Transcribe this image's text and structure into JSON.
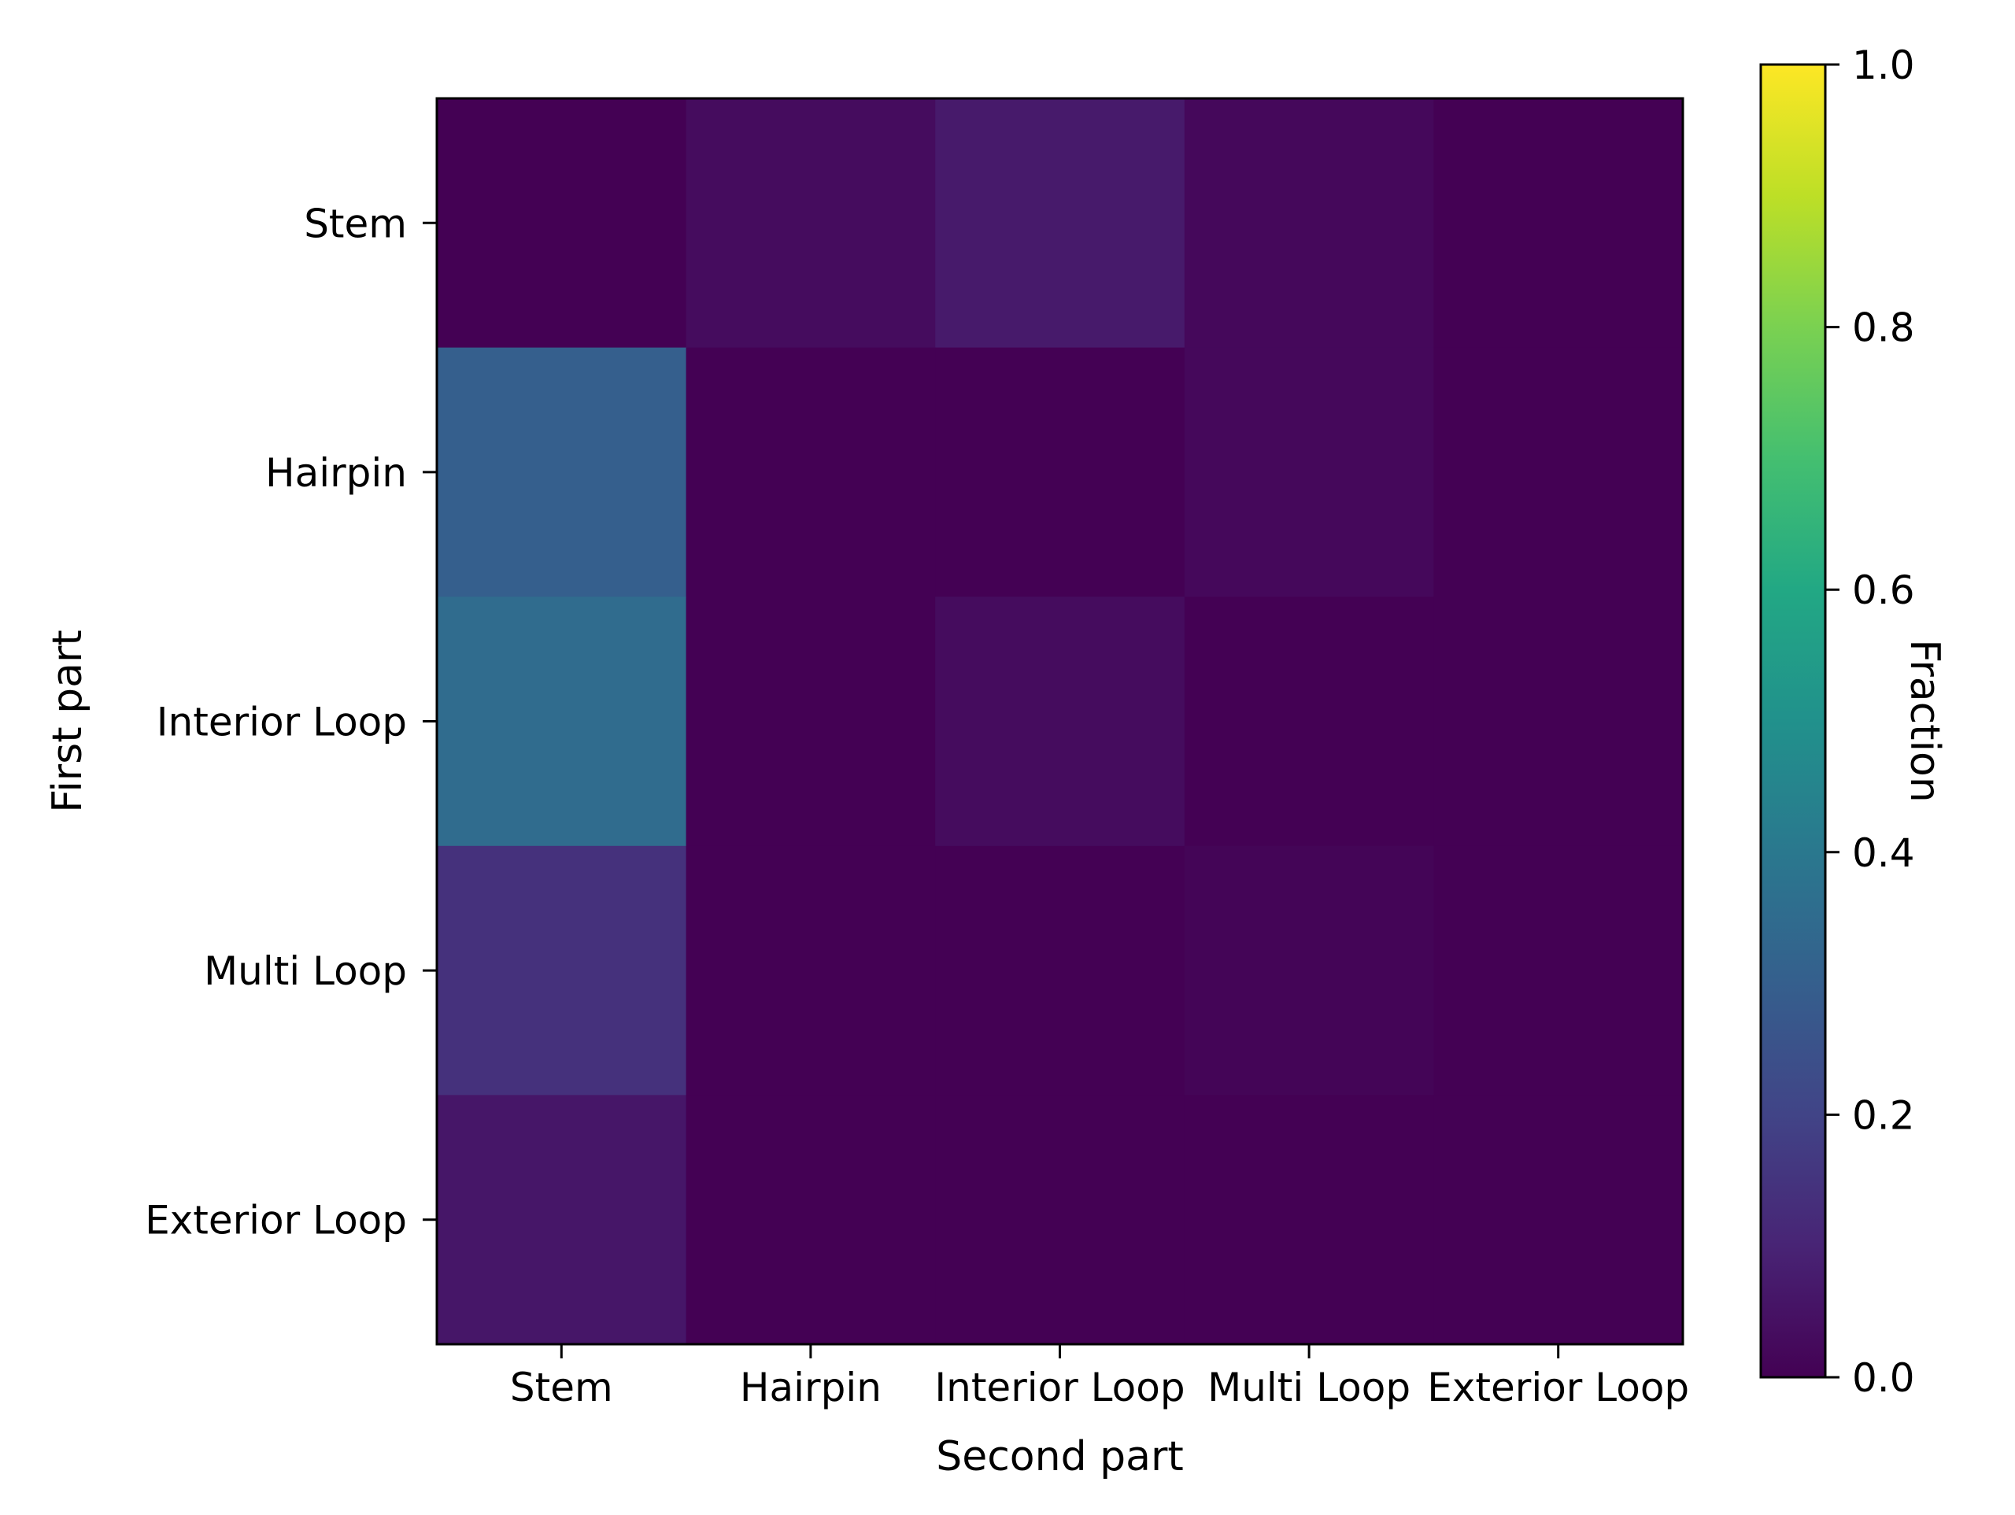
{
  "chart_data": {
    "type": "heatmap",
    "title": "",
    "xlabel": "Second part",
    "ylabel": "First part",
    "x_categories": [
      "Stem",
      "Hairpin",
      "Interior Loop",
      "Multi Loop",
      "Exterior Loop"
    ],
    "y_categories": [
      "Stem",
      "Hairpin",
      "Interior Loop",
      "Multi Loop",
      "Exterior Loop"
    ],
    "values": [
      [
        0.0,
        0.03,
        0.07,
        0.02,
        0.0
      ],
      [
        0.3,
        0.0,
        0.0,
        0.02,
        0.0
      ],
      [
        0.35,
        0.0,
        0.03,
        0.0,
        0.0
      ],
      [
        0.14,
        0.0,
        0.0,
        0.01,
        0.0
      ],
      [
        0.06,
        0.0,
        0.0,
        0.0,
        0.0
      ]
    ],
    "colormap": "viridis",
    "colorbar": {
      "label": "Fraction",
      "range": [
        0.0,
        1.0
      ],
      "ticks": [
        0.0,
        0.2,
        0.4,
        0.6,
        0.8,
        1.0
      ],
      "tick_labels": [
        "0.0",
        "0.2",
        "0.4",
        "0.6",
        "0.8",
        "1.0"
      ]
    },
    "grid": false
  }
}
